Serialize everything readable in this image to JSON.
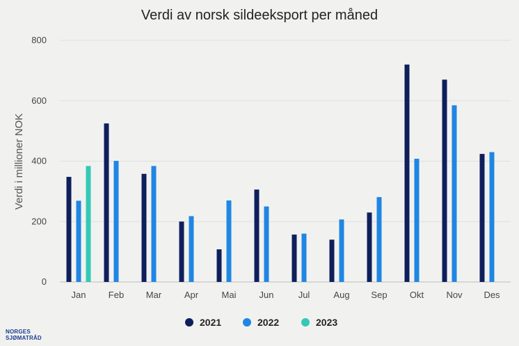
{
  "chart_data": {
    "type": "bar",
    "title": "Verdi av norsk sildeeksport per måned",
    "ylabel": "Verdi i millioner NOK",
    "xlabel": "",
    "ylim": [
      0,
      800
    ],
    "yticks": [
      0,
      200,
      400,
      600,
      800
    ],
    "grid": true,
    "legend_position": "bottom",
    "categories": [
      "Jan",
      "Feb",
      "Mar",
      "Apr",
      "Mai",
      "Jun",
      "Jul",
      "Aug",
      "Sep",
      "Okt",
      "Nov",
      "Des"
    ],
    "series": [
      {
        "name": "2021",
        "color": "#0f1f5c",
        "values": [
          348,
          525,
          358,
          200,
          108,
          306,
          157,
          140,
          230,
          720,
          670,
          424
        ]
      },
      {
        "name": "2022",
        "color": "#1f86e3",
        "values": [
          269,
          401,
          384,
          218,
          270,
          250,
          160,
          207,
          281,
          408,
          585,
          430
        ]
      },
      {
        "name": "2023",
        "color": "#33c9b6",
        "values": [
          384,
          null,
          null,
          null,
          null,
          null,
          null,
          null,
          null,
          null,
          null,
          null
        ]
      }
    ]
  },
  "logo": {
    "line1": "NORGES",
    "line2": "SJØMATRÅD"
  }
}
